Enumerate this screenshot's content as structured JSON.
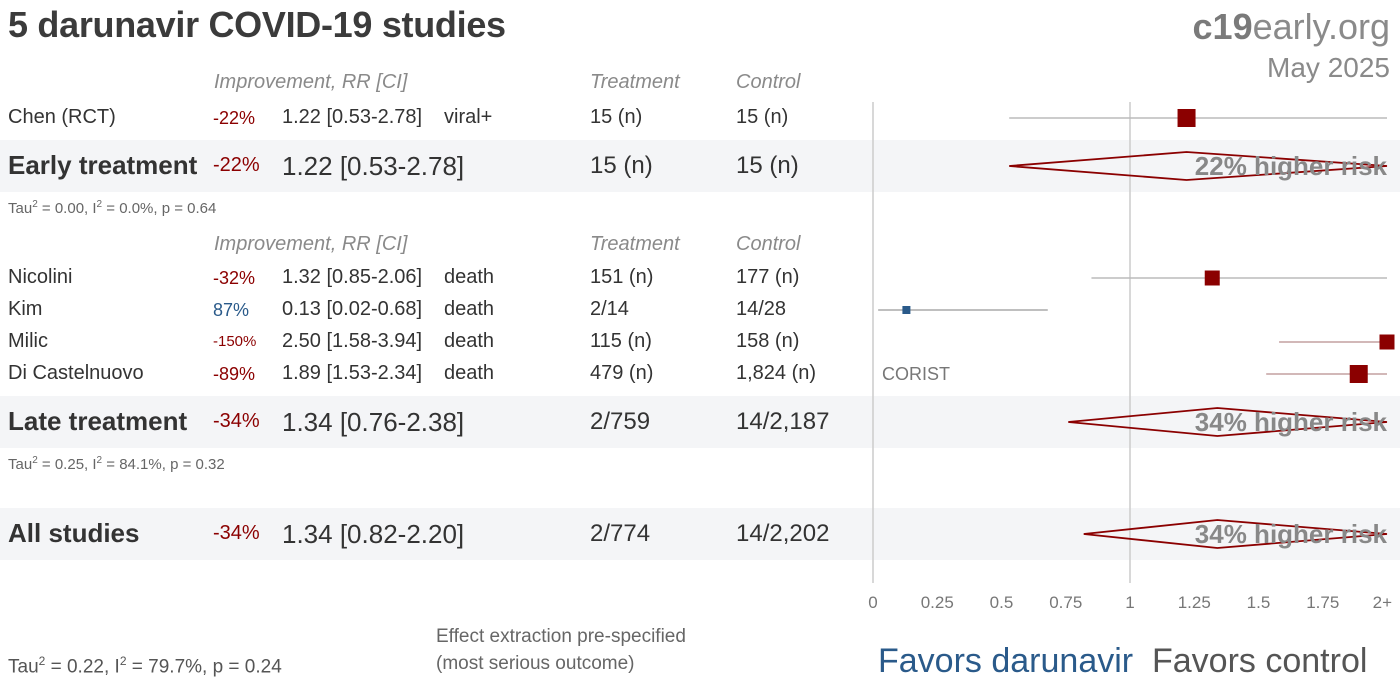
{
  "title": "5 darunavir COVID-19 studies",
  "brand": {
    "bold": "c19",
    "rest": "early.org"
  },
  "date": "May 2025",
  "headers": {
    "improvement": "Improvement, RR [CI]",
    "treatment": "Treatment",
    "control": "Control"
  },
  "early": {
    "studies": [
      {
        "name": "Chen (RCT)",
        "pct": "-22%",
        "rr": "1.22 [0.53-2.78]",
        "outcome": "viral+",
        "treatment": "15 (n)",
        "control": "15 (n)"
      }
    ],
    "summary": {
      "name": "Early treatment",
      "pct": "-22%",
      "rr": "1.22 [0.53-2.78]",
      "treatment": "15 (n)",
      "control": "15 (n)",
      "risk_label": "22% higher risk"
    },
    "stats": {
      "tau": "Tau",
      "tau_val": " = 0.00, I",
      "i2_val": " = 0.0%, p = 0.64"
    }
  },
  "late": {
    "studies": [
      {
        "name": "Nicolini",
        "pct": "-32%",
        "rr": "1.32 [0.85-2.06]",
        "outcome": "death",
        "treatment": "151 (n)",
        "control": "177 (n)"
      },
      {
        "name": "Kim",
        "pct": "87%",
        "rr": "0.13 [0.02-0.68]",
        "outcome": "death",
        "treatment": "2/14",
        "control": "14/28"
      },
      {
        "name": "Milic",
        "pct": "-150%",
        "rr": "2.50 [1.58-3.94]",
        "outcome": "death",
        "treatment": "115 (n)",
        "control": "158 (n)"
      },
      {
        "name": "Di Castelnuovo",
        "pct": "-89%",
        "rr": "1.89 [1.53-2.34]",
        "outcome": "death",
        "treatment": "479 (n)",
        "control": "1,824 (n)",
        "tag": "CORIST"
      }
    ],
    "summary": {
      "name": "Late treatment",
      "pct": "-34%",
      "rr": "1.34 [0.76-2.38]",
      "treatment": "2/759",
      "control": "14/2,187",
      "risk_label": "34% higher risk"
    },
    "stats": {
      "tau": "Tau",
      "tau_val": " = 0.25, I",
      "i2_val": " = 84.1%, p = 0.32"
    }
  },
  "all": {
    "summary": {
      "name": "All studies",
      "pct": "-34%",
      "rr": "1.34 [0.82-2.20]",
      "treatment": "2/774",
      "control": "14/2,202",
      "risk_label": "34% higher risk"
    },
    "stats": {
      "tau": "Tau",
      "tau_val": " = 0.22, I",
      "i2_val": " = 79.7%, p = 0.24"
    }
  },
  "notes": {
    "line1": "Effect extraction pre-specified",
    "line2": "(most serious outcome)"
  },
  "favors": {
    "left": "Favors darunavir",
    "right": "Favors control"
  },
  "colors": {
    "harm": "#8b0000",
    "benefit": "#2a5a8a",
    "ci_line": "#bbbbbb",
    "axis": "#cccccc"
  },
  "chart_data": {
    "type": "forest",
    "xlim": [
      0,
      2
    ],
    "x_ticks": [
      "0",
      "0.25",
      "0.5",
      "0.75",
      "1",
      "1.25",
      "1.5",
      "1.75",
      "2+"
    ],
    "x_tick_values": [
      0,
      0.25,
      0.5,
      0.75,
      1,
      1.25,
      1.5,
      1.75,
      2
    ],
    "reference_line": 1,
    "studies": [
      {
        "name": "Chen (RCT)",
        "rr": 1.22,
        "lo": 0.53,
        "hi": 2.78,
        "group": "early"
      },
      {
        "name": "Nicolini",
        "rr": 1.32,
        "lo": 0.85,
        "hi": 2.06,
        "group": "late"
      },
      {
        "name": "Kim",
        "rr": 0.13,
        "lo": 0.02,
        "hi": 0.68,
        "group": "late"
      },
      {
        "name": "Milic",
        "rr": 2.5,
        "lo": 1.58,
        "hi": 3.94,
        "group": "late"
      },
      {
        "name": "Di Castelnuovo",
        "rr": 1.89,
        "lo": 1.53,
        "hi": 2.34,
        "group": "late"
      }
    ],
    "summaries": [
      {
        "name": "Early treatment",
        "rr": 1.22,
        "lo": 0.53,
        "hi": 2.78
      },
      {
        "name": "Late treatment",
        "rr": 1.34,
        "lo": 0.76,
        "hi": 2.38
      },
      {
        "name": "All studies",
        "rr": 1.34,
        "lo": 0.82,
        "hi": 2.2
      }
    ]
  }
}
